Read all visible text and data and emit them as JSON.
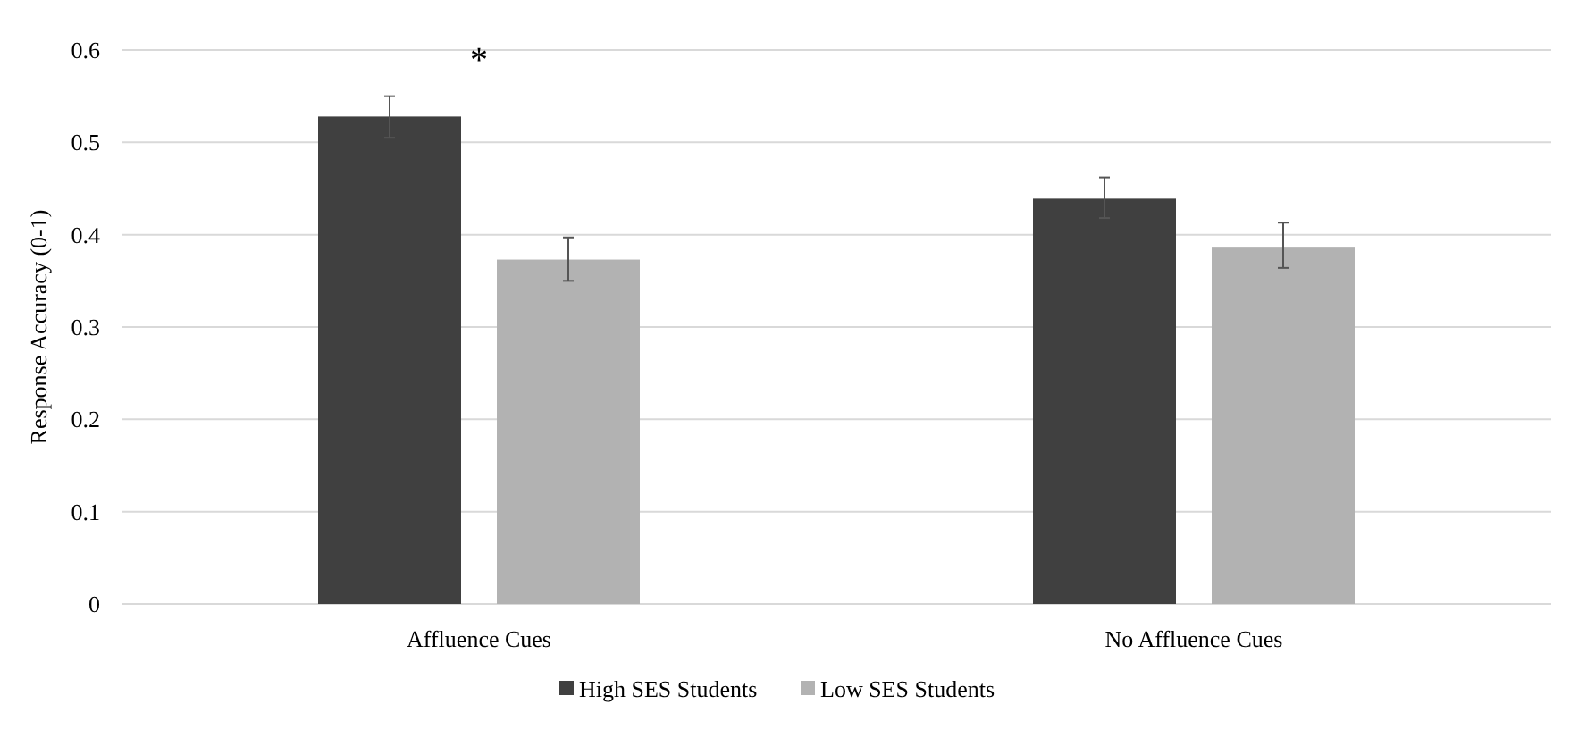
{
  "chart_data": {
    "type": "bar",
    "ylabel": "Response Accuracy (0-1)",
    "categories": [
      "Affluence Cues",
      "No Affluence Cues"
    ],
    "series": [
      {
        "name": "High SES Students",
        "color": "#404040",
        "values": [
          0.528,
          0.439
        ],
        "errors": [
          [
            0.505,
            0.55
          ],
          [
            0.418,
            0.462
          ]
        ]
      },
      {
        "name": "Low SES Students",
        "color": "#b2b2b2",
        "values": [
          0.373,
          0.386
        ],
        "errors": [
          [
            0.35,
            0.397
          ],
          [
            0.364,
            0.413
          ]
        ]
      }
    ],
    "ylim": [
      0,
      0.6
    ],
    "yticks": [
      0,
      0.1,
      0.2,
      0.3,
      0.4,
      0.5,
      0.6
    ],
    "grid": "y",
    "legend": "bottom",
    "annotations": [
      "*"
    ]
  }
}
